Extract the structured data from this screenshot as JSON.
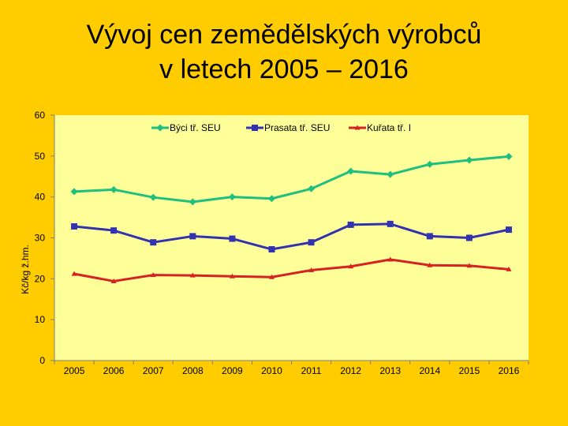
{
  "title_line1": "Vývoj cen zemědělských výrobců",
  "title_line2": "v letech 2005 – 2016",
  "chart_data": {
    "type": "line",
    "categories": [
      "2005",
      "2006",
      "2007",
      "2008",
      "2009",
      "2010",
      "2011",
      "2012",
      "2013",
      "2014",
      "2015",
      "2016"
    ],
    "ylabel": "Kč/kg ž.hm.",
    "xlabel": "",
    "ylim": [
      0,
      60
    ],
    "yticks": [
      0,
      10,
      20,
      30,
      40,
      50,
      60
    ],
    "grid": false,
    "legend_position": "top",
    "plot_background": "#FFFF99",
    "series": [
      {
        "name": "Býci tř. SEU",
        "color": "#1FBF7F",
        "marker": "diamond",
        "values": [
          41.3,
          41.8,
          39.9,
          38.8,
          40.0,
          39.6,
          42.0,
          46.3,
          45.5,
          48.0,
          49.0,
          49.9
        ]
      },
      {
        "name": "Prasata tř. SEU",
        "color": "#3333B2",
        "marker": "square",
        "values": [
          32.8,
          31.8,
          28.9,
          30.4,
          29.8,
          27.2,
          28.9,
          33.2,
          33.4,
          30.4,
          30.0,
          32.0
        ]
      },
      {
        "name": "Kuřata tř. I",
        "color": "#D62222",
        "marker": "triangle",
        "values": [
          21.2,
          19.4,
          20.9,
          20.8,
          20.6,
          20.4,
          22.1,
          23.0,
          24.7,
          23.3,
          23.2,
          22.3
        ]
      }
    ]
  }
}
